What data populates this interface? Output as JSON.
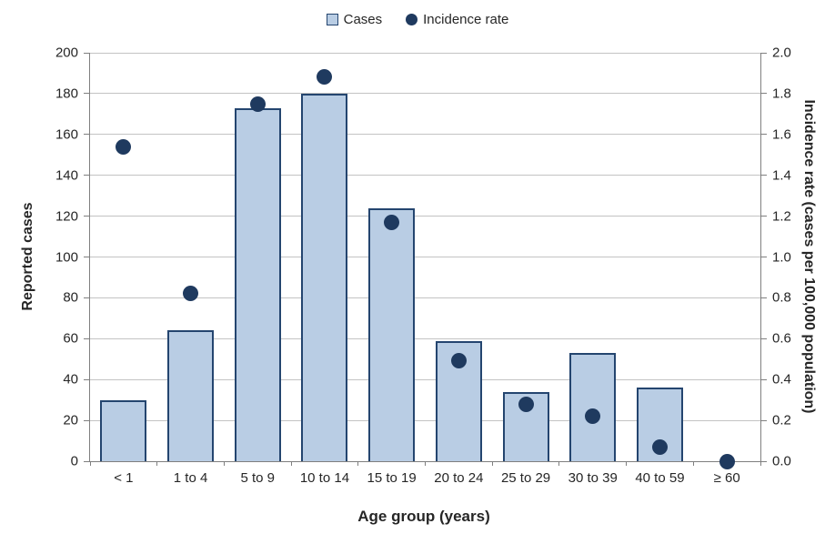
{
  "chart_data": {
    "type": "bar",
    "subtype": "combo-bar-scatter-dual-axis",
    "title": "",
    "categories": [
      "< 1",
      "1 to 4",
      "5 to 9",
      "10 to 14",
      "15 to 19",
      "20 to 24",
      "25 to 29",
      "30 to 39",
      "40 to 59",
      "≥ 60"
    ],
    "series": [
      {
        "name": "Cases",
        "type": "bar",
        "axis": "left",
        "values": [
          30,
          64,
          173,
          180,
          124,
          59,
          34,
          53,
          36,
          0
        ]
      },
      {
        "name": "Incidence rate",
        "type": "scatter",
        "axis": "right",
        "values": [
          1.54,
          0.82,
          1.75,
          1.88,
          1.17,
          0.49,
          0.28,
          0.22,
          0.07,
          0.0
        ]
      }
    ],
    "x_axis": {
      "label": "Age group (years)"
    },
    "left_axis": {
      "label": "Reported cases",
      "min": 0,
      "max": 200,
      "step": 20,
      "tick_labels": [
        "0",
        "20",
        "40",
        "60",
        "80",
        "100",
        "120",
        "140",
        "160",
        "180",
        "200"
      ]
    },
    "right_axis": {
      "label": "Incidence rate (cases per 100,000 population)",
      "min": 0,
      "max": 2.0,
      "step": 0.2,
      "tick_labels": [
        "0.0",
        "0.2",
        "0.4",
        "0.6",
        "0.8",
        "1.0",
        "1.2",
        "1.4",
        "1.6",
        "1.8",
        "2.0"
      ]
    },
    "legend": {
      "position": "top",
      "items": [
        {
          "label": "Cases",
          "marker": "square"
        },
        {
          "label": "Incidence rate",
          "marker": "circle"
        }
      ]
    },
    "grid": true,
    "colors": {
      "bar_fill": "#B9CDE4",
      "bar_border": "#24456F",
      "marker": "#1F3A5F",
      "gridline": "#C3C3C3",
      "axis_line": "#7F7F7F",
      "text": "#262626"
    }
  }
}
